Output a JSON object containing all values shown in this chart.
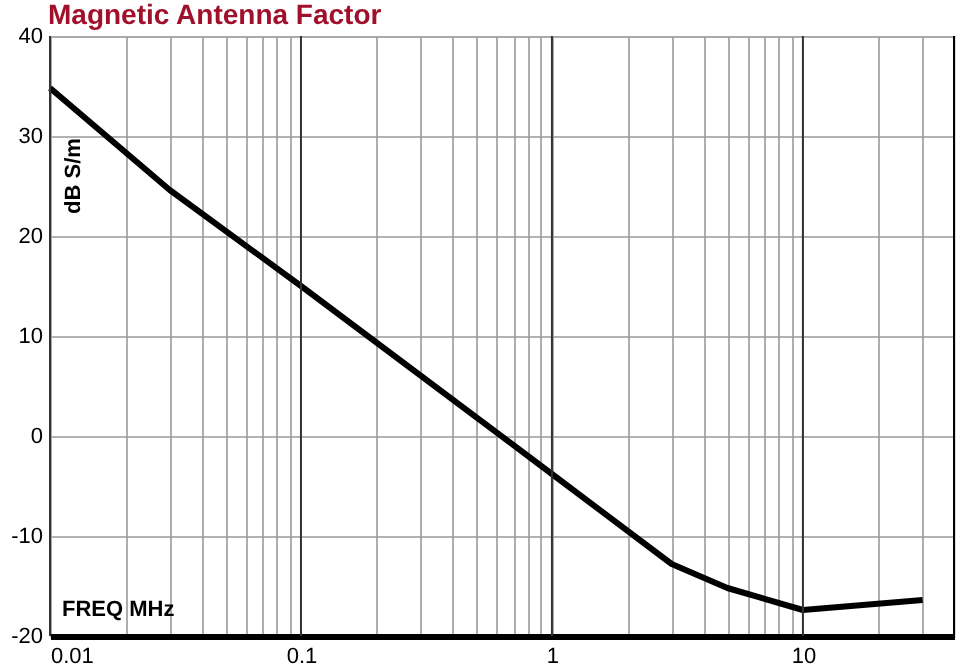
{
  "chart_data": {
    "type": "line",
    "title": "Magnetic Antenna Factor",
    "xlabel": "FREQ  MHz",
    "ylabel": "dB S/m",
    "x": [
      0.01,
      0.03,
      0.1,
      1,
      3,
      5,
      10,
      30
    ],
    "series": [
      {
        "color": "#000000",
        "values": [
          34.8,
          24.6,
          15,
          -3.8,
          -12.8,
          -15.2,
          -17.4,
          -16.4
        ]
      }
    ],
    "log": "x",
    "xlim": [
      0.01,
      40
    ],
    "ylim": [
      -20,
      40
    ],
    "xticks": [
      0.01,
      {
        "value": 0.02,
        "label": null
      },
      {
        "value": 0.03,
        "label": null
      },
      {
        "value": 0.04,
        "label": null
      },
      {
        "value": 0.05,
        "label": null
      },
      {
        "value": 0.06,
        "label": null
      },
      {
        "value": 0.07,
        "label": null
      },
      {
        "value": 0.08,
        "label": null
      },
      {
        "value": 0.09,
        "label": null
      },
      0.1,
      {
        "value": 0.2,
        "label": null
      },
      {
        "value": 0.3,
        "label": null
      },
      {
        "value": 0.4,
        "label": null
      },
      {
        "value": 0.5,
        "label": null
      },
      {
        "value": 0.6,
        "label": null
      },
      {
        "value": 0.7,
        "label": null
      },
      {
        "value": 0.8,
        "label": null
      },
      {
        "value": 0.9,
        "label": null
      },
      1,
      {
        "value": 2,
        "label": null
      },
      {
        "value": 3,
        "label": null
      },
      {
        "value": 4,
        "label": null
      },
      {
        "value": 5,
        "label": null
      },
      {
        "value": 6,
        "label": null
      },
      {
        "value": 7,
        "label": null
      },
      {
        "value": 8,
        "label": null
      },
      {
        "value": 9,
        "label": null
      },
      10,
      {
        "value": 20,
        "label": null
      },
      {
        "value": 30,
        "label": null
      }
    ],
    "yticks": [
      -20,
      -10,
      0,
      10,
      20,
      30,
      40
    ],
    "grid": true,
    "line_style": "solid",
    "marker": "none"
  }
}
